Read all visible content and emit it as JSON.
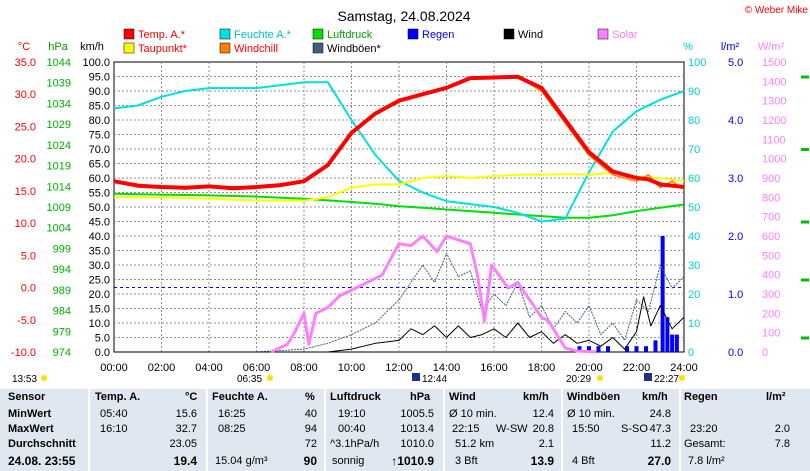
{
  "header": {
    "title": "Samstag, 24.08.2024",
    "copyright": "© Weber Mike"
  },
  "axis_units": {
    "temp": "°C",
    "hpa": "hPa",
    "kmh": "km/h",
    "pct": "%",
    "lm2": "l/m²",
    "wm2": "W/m²"
  },
  "legend": [
    {
      "label": "Temp. A.*",
      "color": "#ff0000"
    },
    {
      "label": "Feuchte A.*",
      "color": "#00e0e0"
    },
    {
      "label": "Luftdruck",
      "color": "#00e000"
    },
    {
      "label": "Regen",
      "color": "#0000ff"
    },
    {
      "label": "Wind",
      "color": "#000000"
    },
    {
      "label": "Solar",
      "color": "#ff80ff"
    },
    {
      "label": "Taupunkt*",
      "color": "#ffff00"
    },
    {
      "label": "Windchill",
      "color": "#ff8000"
    },
    {
      "label": "Windböen*",
      "color": "#406080"
    }
  ],
  "sun_events": {
    "day_start": "13:53",
    "sunrise": "06:35",
    "max_time": "12:44",
    "sunset": "20:29",
    "extra": "22:27"
  },
  "chart_data": {
    "type": "line",
    "title": "Samstag, 24.08.2024",
    "x_ticks": [
      "00:00",
      "02:00",
      "04:00",
      "06:00",
      "08:00",
      "10:00",
      "12:00",
      "14:00",
      "16:00",
      "18:00",
      "20:00",
      "22:00",
      "24:00"
    ],
    "xlim": [
      0,
      24
    ],
    "axes": {
      "temp": {
        "label": "°C",
        "ylim": [
          -10,
          35
        ],
        "ticks": [
          "35.0",
          "30.0",
          "25.0",
          "20.0",
          "15.0",
          "10.0",
          "5.0",
          "0.0",
          "-5.0",
          "-10.0"
        ]
      },
      "pressure": {
        "label": "hPa",
        "ylim": [
          974,
          1044
        ],
        "ticks": [
          "1044",
          "1039",
          "1034",
          "1029",
          "1024",
          "1019",
          "1014",
          "1009",
          "1004",
          "999",
          "994",
          "989",
          "984",
          "979",
          "974"
        ]
      },
      "wind": {
        "label": "km/h",
        "ylim": [
          0,
          100
        ],
        "ticks": [
          "100.0",
          "95.0",
          "90.0",
          "85.0",
          "80.0",
          "75.0",
          "70.0",
          "65.0",
          "60.0",
          "55.0",
          "50.0",
          "45.0",
          "40.0",
          "35.0",
          "30.0",
          "25.0",
          "20.0",
          "15.0",
          "10.0",
          "5.0",
          "0.0"
        ]
      },
      "humidity": {
        "label": "%",
        "ylim": [
          0,
          100
        ],
        "ticks": [
          "100",
          "90",
          "80",
          "70",
          "60",
          "50",
          "40",
          "30",
          "20",
          "10",
          "0"
        ]
      },
      "rain": {
        "label": "l/m²",
        "ylim": [
          0,
          5
        ],
        "ticks": [
          "5.0",
          "4.0",
          "3.0",
          "2.0",
          "1.0",
          "0.0"
        ]
      },
      "solar": {
        "label": "W/m²",
        "ylim": [
          0,
          1500
        ],
        "ticks": [
          "1500",
          "1400",
          "1300",
          "1200",
          "1100",
          "1000",
          "900",
          "800",
          "700",
          "600",
          "500",
          "400",
          "300",
          "200",
          "100",
          "0"
        ]
      }
    },
    "grid": true,
    "series": [
      {
        "name": "Temp. A.*",
        "axis": "temp",
        "color": "#ff0000",
        "x": [
          0,
          1,
          2,
          3,
          4,
          5,
          6,
          7,
          8,
          9,
          10,
          11,
          12,
          13,
          14,
          15,
          16,
          17,
          18,
          19,
          20,
          21,
          22,
          22.5,
          23,
          24
        ],
        "y": [
          16.5,
          15.8,
          15.6,
          15.5,
          15.7,
          15.4,
          15.6,
          15.9,
          16.5,
          19,
          24,
          27,
          29,
          30,
          31,
          32.5,
          32.6,
          32.7,
          31,
          26,
          21,
          18,
          17,
          16.8,
          16,
          15.6
        ]
      },
      {
        "name": "Taupunkt*",
        "axis": "temp",
        "color": "#ffff00",
        "x": [
          0,
          2,
          4,
          6,
          8,
          9,
          10,
          11,
          12,
          13,
          14,
          15,
          16,
          17,
          18,
          19,
          20,
          21,
          22,
          23,
          24
        ],
        "y": [
          14,
          14,
          13.8,
          13.5,
          13.5,
          14,
          15.5,
          16,
          16,
          17,
          17.3,
          17,
          17.3,
          17.5,
          17.5,
          17.6,
          17.5,
          17.8,
          17.2,
          17,
          16.5
        ]
      },
      {
        "name": "Windchill",
        "axis": "temp",
        "color": "#ff8000",
        "x": [
          0,
          2,
          4,
          6,
          8,
          9,
          10,
          11,
          12,
          13,
          14,
          15,
          16,
          17,
          18,
          19,
          20,
          21,
          22,
          22.5,
          23,
          23.5,
          24
        ],
        "y": [
          16.5,
          15.6,
          15.7,
          15.6,
          16.3,
          18.8,
          24,
          27,
          29,
          30,
          31,
          32.5,
          32.6,
          32.7,
          30.5,
          25.5,
          20.5,
          17.5,
          16.5,
          17.5,
          15.5,
          16.5,
          15.3
        ]
      },
      {
        "name": "Feuchte A.*",
        "axis": "humidity",
        "color": "#00e0e0",
        "x": [
          0,
          1,
          2,
          3,
          4,
          5,
          6,
          7,
          8,
          9,
          10,
          11,
          12,
          13,
          14,
          15,
          16,
          17,
          18,
          19,
          20,
          21,
          22,
          23,
          24
        ],
        "y": [
          84,
          85,
          88,
          90,
          91,
          91,
          91,
          92,
          93,
          93,
          80,
          68,
          59,
          55,
          52,
          51,
          50,
          48,
          45,
          46,
          62,
          76,
          83,
          87,
          90
        ]
      },
      {
        "name": "Luftdruck",
        "axis": "pressure",
        "color": "#00e000",
        "x": [
          0,
          2,
          4,
          6,
          8,
          10,
          11,
          12,
          13,
          14,
          15,
          16,
          17,
          18,
          19,
          20,
          21,
          22,
          23,
          24
        ],
        "y": [
          1012.2,
          1012.0,
          1011.8,
          1011.5,
          1011.0,
          1010.2,
          1009.8,
          1009.2,
          1008.8,
          1008.4,
          1008.0,
          1007.6,
          1007.2,
          1006.8,
          1006.4,
          1006.4,
          1007.0,
          1008.0,
          1008.8,
          1009.6
        ]
      },
      {
        "name": "Solar",
        "axis": "solar",
        "color": "#ff80ff",
        "x": [
          6.6,
          7.3,
          7.6,
          8.0,
          8.2,
          8.5,
          9,
          9.5,
          10,
          10.5,
          11,
          11.3,
          11.6,
          12,
          12.5,
          13,
          13.3,
          13.6,
          14,
          14.5,
          15,
          15.3,
          15.6,
          15.9,
          16.2,
          16.6,
          17,
          17.5,
          18,
          18.3,
          18.6,
          19,
          19.5,
          20.3
        ],
        "y": [
          0,
          40,
          100,
          200,
          40,
          200,
          230,
          290,
          320,
          350,
          380,
          400,
          470,
          560,
          550,
          600,
          560,
          520,
          600,
          580,
          560,
          400,
          160,
          450,
          400,
          330,
          360,
          270,
          180,
          160,
          100,
          20,
          5,
          0
        ]
      },
      {
        "name": "Windböen*",
        "axis": "wind",
        "color": "#406080",
        "x": [
          0,
          6,
          8,
          9,
          10,
          11,
          12,
          13,
          13.5,
          14,
          14.5,
          15,
          15.5,
          16,
          16.5,
          17,
          17.5,
          18,
          18.5,
          19,
          19.5,
          20,
          20.5,
          21,
          21.5,
          22,
          22.5,
          23,
          23.5,
          24
        ],
        "y": [
          0,
          0,
          1,
          3,
          6,
          10,
          18,
          30,
          24,
          34,
          26,
          28,
          14,
          20,
          16,
          24,
          12,
          16,
          8,
          14,
          10,
          16,
          6,
          10,
          4,
          18,
          14,
          30,
          22,
          26
        ]
      },
      {
        "name": "Wind",
        "axis": "wind",
        "color": "#000000",
        "x": [
          0,
          8,
          9,
          10,
          11,
          12,
          12.5,
          13,
          13.5,
          14,
          14.5,
          15,
          15.5,
          16,
          16.5,
          17,
          17.5,
          18,
          18.5,
          19,
          19.5,
          20,
          20.5,
          21,
          21.5,
          22,
          22.3,
          22.6,
          23,
          23.5,
          24
        ],
        "y": [
          0,
          0,
          0,
          1,
          3,
          4,
          8,
          6,
          9,
          5,
          9,
          5,
          6,
          8,
          5,
          10,
          5,
          7,
          3,
          6,
          3,
          4,
          2,
          5,
          1,
          7,
          19,
          9,
          16,
          8,
          12
        ]
      },
      {
        "name": "Regen",
        "axis": "rain",
        "color": "#0000ff",
        "type": "bar",
        "x": [
          19.6,
          20.0,
          20.4,
          20.8,
          21.6,
          22.0,
          22.4,
          22.8,
          23.1,
          23.3,
          23.5,
          23.7
        ],
        "y": [
          0.1,
          0.1,
          0.1,
          0.1,
          0.1,
          0.1,
          0.1,
          0.2,
          2.0,
          0.6,
          0.3,
          0.3
        ]
      }
    ]
  },
  "table": {
    "col_sensor": {
      "header": "Sensor",
      "min": "MinWert",
      "max": "MaxWert",
      "avg": "Durchschnitt",
      "current": "24.08. 23:55"
    },
    "col_temp": {
      "header": "Temp. A.",
      "unit": "°C",
      "min_time": "05:40",
      "min_val": "15.6",
      "max_time": "16:10",
      "max_val": "32.7",
      "avg_val": "23.05",
      "current_val": "19.4"
    },
    "col_hum": {
      "header": "Feuchte A.",
      "unit": "%",
      "min_time": "16:25",
      "min_val": "40",
      "max_time": "08:25",
      "max_val": "94",
      "avg_val": "72",
      "extra": "15.04 g/m³",
      "current_val": "90"
    },
    "col_press": {
      "header": "Luftdruck",
      "unit": "hPa",
      "min_time": "19:10",
      "min_val": "1005.5",
      "max_time": "00:40",
      "max_val": "1013.4",
      "avg_label": "^3.1hPa/h",
      "avg_val": "1010.0",
      "forecast": "sonnig",
      "current_val": "↑1010.9"
    },
    "col_wind": {
      "header": "Wind",
      "unit": "km/h",
      "r1_label": "Ø 10 min.",
      "r1_val": "12.4",
      "r2_label": "22:15",
      "r2_dir": "W-SW",
      "r2_val": "20.8",
      "r3_label": "51.2 km",
      "r3_val": "2.1",
      "r4_label": "3 Bft",
      "r4_val": "13.9"
    },
    "col_gust": {
      "header": "Windböen",
      "unit": "km/h",
      "r1_label": "Ø 10 min.",
      "r1_val": "24.8",
      "r2_label": "15:50",
      "r2_dir": "S-SO",
      "r2_val": "47.3",
      "r3_val": "11.2",
      "r4_label": "4 Bft",
      "r4_val": "27.0"
    },
    "col_rain": {
      "header": "Regen",
      "unit": "l/m²",
      "r2_label": "23:20",
      "r2_val": "2.0",
      "r3_label": "Gesamt:",
      "r3_val": "7.8",
      "r4_val": "7.8 l/m²"
    }
  }
}
